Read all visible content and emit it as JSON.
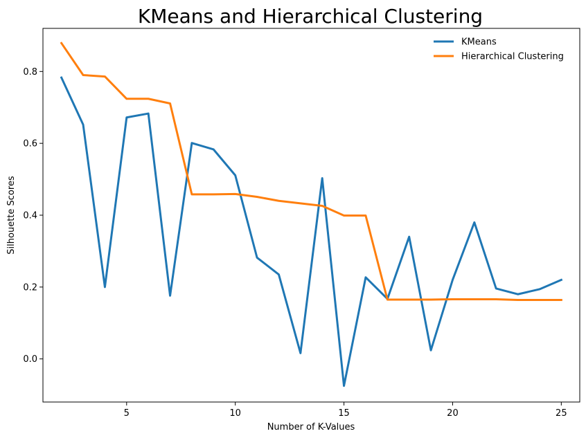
{
  "chart_data": {
    "type": "line",
    "title": "KMeans and Hierarchical Clustering",
    "xlabel": "Number of K-Values",
    "ylabel": "Silhouette Scores",
    "xlim": [
      1.15,
      25.85
    ],
    "ylim": [
      -0.12,
      0.92
    ],
    "xticks": [
      5,
      10,
      15,
      20,
      25
    ],
    "yticks": [
      0.0,
      0.2,
      0.4,
      0.6,
      0.8
    ],
    "ytick_labels": [
      "0.0",
      "0.2",
      "0.4",
      "0.6",
      "0.8"
    ],
    "grid": false,
    "legend": "top-right",
    "x": [
      2,
      3,
      4,
      5,
      6,
      7,
      8,
      9,
      10,
      11,
      12,
      13,
      14,
      15,
      16,
      17,
      18,
      19,
      20,
      21,
      22,
      23,
      24,
      25
    ],
    "series": [
      {
        "name": "KMeans",
        "color": "#1f77b4",
        "values": [
          0.783,
          0.652,
          0.2,
          0.672,
          0.683,
          0.176,
          0.601,
          0.583,
          0.511,
          0.282,
          0.235,
          0.016,
          0.503,
          -0.075,
          0.227,
          0.167,
          0.34,
          0.024,
          0.22,
          0.38,
          0.196,
          0.18,
          0.194,
          0.22
        ]
      },
      {
        "name": "Hierarchical Clustering",
        "color": "#ff7f0e",
        "values": [
          0.879,
          0.79,
          0.786,
          0.724,
          0.724,
          0.711,
          0.458,
          0.458,
          0.459,
          0.451,
          0.44,
          0.433,
          0.426,
          0.399,
          0.399,
          0.165,
          0.165,
          0.165,
          0.166,
          0.166,
          0.166,
          0.164,
          0.164,
          0.164
        ]
      }
    ]
  }
}
